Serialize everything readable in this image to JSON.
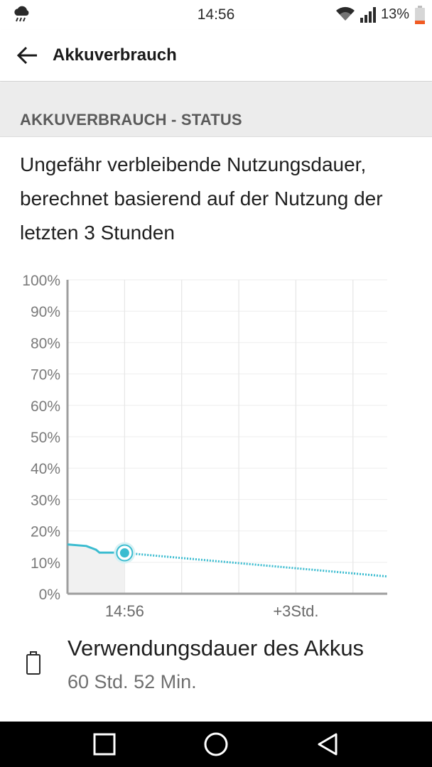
{
  "status_bar": {
    "time": "14:56",
    "battery_percent": "13%",
    "icons": [
      "weather-rain-icon",
      "wifi-icon",
      "signal-icon",
      "battery-icon"
    ]
  },
  "app_bar": {
    "title": "Akkuverbrauch",
    "back_icon": "arrow-left-icon"
  },
  "section": {
    "header": "AKKUVERBRAUCH - STATUS",
    "description": "Ungefähr verbleibende Nutzungsdauer, berechnet basierend auf der Nutzung der letzten 3 Stunden"
  },
  "chart_data": {
    "type": "line",
    "title": "",
    "xlabel": "",
    "ylabel": "",
    "y_ticks": [
      "100%",
      "90%",
      "80%",
      "70%",
      "60%",
      "50%",
      "40%",
      "30%",
      "20%",
      "10%",
      "0%"
    ],
    "ylim": [
      0,
      100
    ],
    "x_tick_labels": [
      "14:56",
      "+3Std."
    ],
    "xlim_hours": [
      -1,
      4.6
    ],
    "grid": true,
    "series": [
      {
        "style": "solid",
        "color": "#3bbcd0",
        "points": [
          [
            -1.0,
            15.7
          ],
          [
            -0.67,
            15.2
          ],
          [
            -0.5,
            14.0
          ],
          [
            -0.44,
            13.1
          ],
          [
            -0.12,
            13.1
          ],
          [
            0.0,
            13.0
          ]
        ]
      },
      {
        "style": "dotted",
        "color": "#3bbcd0",
        "points": [
          [
            0.0,
            13.0
          ],
          [
            4.6,
            5.5
          ]
        ]
      }
    ],
    "current_marker": {
      "x": 0.0,
      "y": 13.0
    }
  },
  "usage": {
    "icon": "battery-outline-icon",
    "title": "Verwendungsdauer des Akkus",
    "value": "60 Std. 52 Min."
  },
  "nav_bar": {
    "buttons": [
      "recents-square-icon",
      "home-circle-icon",
      "back-triangle-icon"
    ]
  },
  "colors": {
    "accent": "#3bbcd0",
    "battery_low": "#f15a22",
    "section_bg": "#ececec"
  }
}
